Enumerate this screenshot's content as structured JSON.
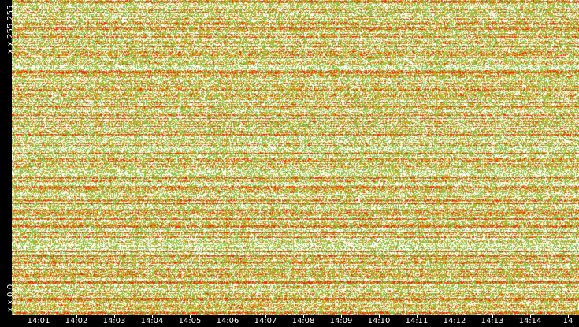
{
  "chart_data": {
    "type": "heatmap",
    "title": "",
    "xlabel": "",
    "ylabel": "",
    "y_range_labels": {
      "top": "x.x.255.255",
      "bottom": "x.x.0.0"
    },
    "x": [
      "14:01",
      "14:02",
      "14:03",
      "14:04",
      "14:05",
      "14:06",
      "14:07",
      "14:08",
      "14:09",
      "14:10",
      "14:11",
      "14:12",
      "14:13",
      "14:14",
      "14"
    ],
    "xlim": [
      "14:00",
      "14:15"
    ],
    "ylim": [
      "x.x.0.0",
      "x.x.255.255"
    ],
    "grid": false,
    "legend": "none",
    "value_scale": {
      "levels": [
        "none",
        "low",
        "medium",
        "high",
        "very-high"
      ],
      "colors": [
        "#ffffff",
        "#7cc043",
        "#b9c02a",
        "#f08a00",
        "#ff1a00"
      ]
    }
  },
  "colors": {
    "background": "#000000",
    "text": "#ffffff"
  }
}
